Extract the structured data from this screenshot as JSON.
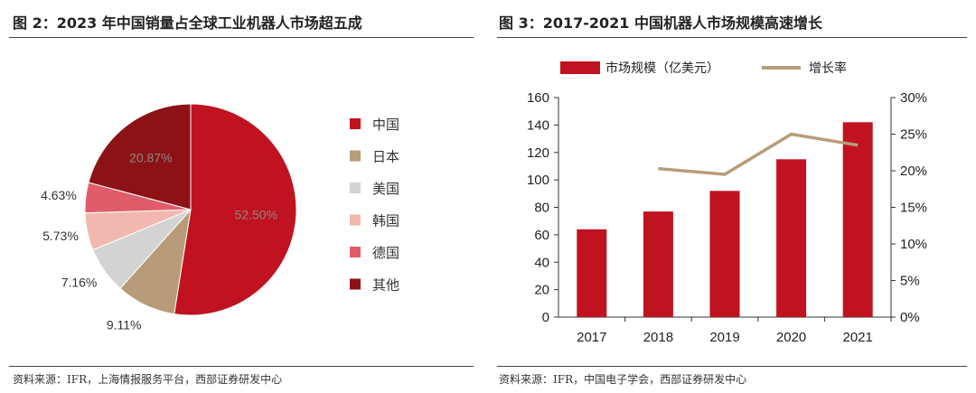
{
  "left": {
    "title": "图 2：2023 年中国销量占全球工业机器人市场超五成",
    "source": "资料来源：IFR，上海情报服务平台，西部证券研发中心"
  },
  "right": {
    "title": "图 3：2017-2021 中国机器人市场规模高速增长",
    "source": "资料来源：IFR，中国电子学会，西部证券研发中心"
  },
  "chart_data": [
    {
      "type": "pie",
      "labels": [
        "中国",
        "日本",
        "美国",
        "韩国",
        "德国",
        "其他"
      ],
      "values": [
        52.5,
        9.11,
        7.16,
        5.73,
        4.63,
        20.87
      ],
      "value_labels": [
        "52.50%",
        "9.11%",
        "7.16%",
        "5.73%",
        "4.63%",
        "20.87%"
      ],
      "colors": [
        "#C0121F",
        "#B89B78",
        "#D3D3D3",
        "#F2B8AF",
        "#E05C6A",
        "#8C1215"
      ],
      "legend_position": "right"
    },
    {
      "type": "bar",
      "categories": [
        "2017",
        "2018",
        "2019",
        "2020",
        "2021"
      ],
      "series": [
        {
          "name": "市场规模（亿美元）",
          "type": "bar",
          "axis": "left",
          "color": "#C0121F",
          "values": [
            64,
            77,
            92,
            115,
            142
          ]
        },
        {
          "name": "增长率",
          "type": "line",
          "axis": "right",
          "color": "#B89B78",
          "values": [
            null,
            20.3,
            19.5,
            25.0,
            23.5
          ]
        }
      ],
      "ylim": [
        0,
        160
      ],
      "yticks": [
        "0",
        "20",
        "40",
        "60",
        "80",
        "100",
        "120",
        "140",
        "160"
      ],
      "y2lim": [
        0,
        30
      ],
      "y2ticks": [
        "0%",
        "5%",
        "10%",
        "15%",
        "20%",
        "25%",
        "30%"
      ],
      "grid": false,
      "legend_position": "top"
    }
  ]
}
